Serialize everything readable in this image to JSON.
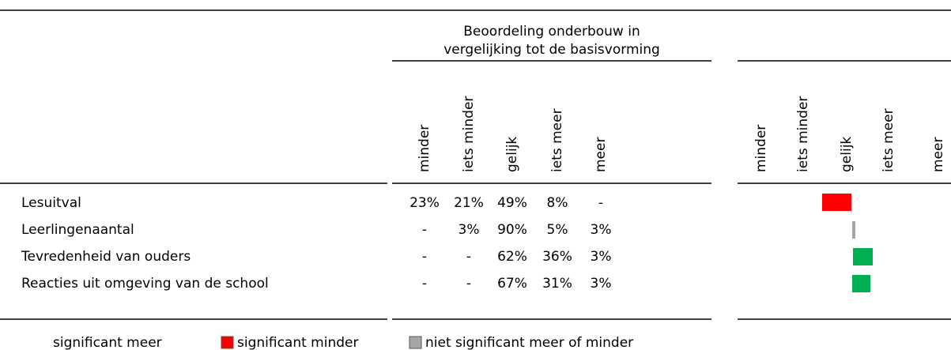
{
  "header": {
    "group_title": [
      "Beoordeling onderbouw in",
      "vergelijking tot de basisvorming"
    ],
    "columns": [
      "minder",
      "iets minder",
      "gelijk",
      "iets meer",
      "meer"
    ],
    "chart_columns": [
      "minder",
      "iets minder",
      "gelijk",
      "iets meer",
      "meer"
    ]
  },
  "rows": [
    {
      "label": "Lesuitval",
      "values": [
        "23%",
        "21%",
        "49%",
        "8%",
        "-"
      ]
    },
    {
      "label": "Leerlingenaantal",
      "values": [
        "-",
        "3%",
        "90%",
        "5%",
        "3%"
      ]
    },
    {
      "label": "Tevredenheid van ouders",
      "values": [
        "-",
        "-",
        "62%",
        "36%",
        "3%"
      ]
    },
    {
      "label": "Reacties uit omgeving van de school",
      "values": [
        "-",
        "-",
        "67%",
        "31%",
        "3%"
      ]
    }
  ],
  "legend": [
    "significant meer",
    "significant minder",
    "niet significant meer of minder"
  ]
}
